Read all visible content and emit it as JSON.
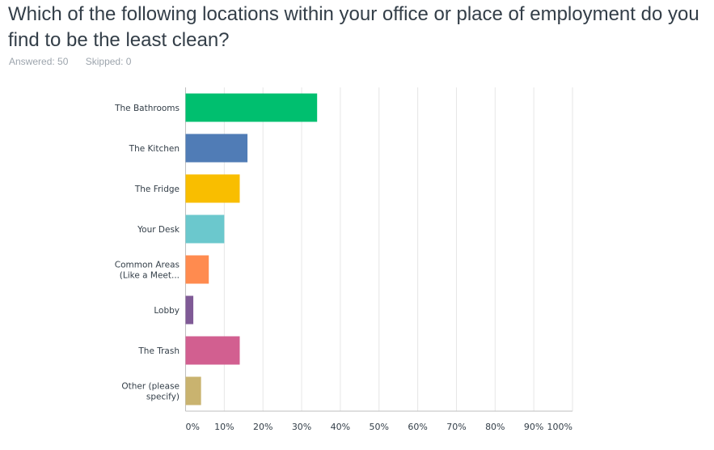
{
  "question": {
    "title": "Which of the following locations within your office or place of employment do you find to be the least clean?"
  },
  "stats": {
    "answered": "Answered: 50",
    "skipped": "Skipped: 0"
  },
  "chart_data": {
    "type": "bar",
    "orientation": "horizontal",
    "categories": [
      [
        "The Bathrooms"
      ],
      [
        "The Kitchen"
      ],
      [
        "The Fridge"
      ],
      [
        "Your Desk"
      ],
      [
        "Common Areas",
        "(Like a Meet..."
      ],
      [
        "Lobby"
      ],
      [
        "The Trash"
      ],
      [
        "Other (please",
        "specify)"
      ]
    ],
    "values": [
      34,
      16,
      14,
      10,
      6,
      2,
      14,
      4
    ],
    "colors": [
      "#00bf6f",
      "#507cb6",
      "#f9be00",
      "#6bc8cd",
      "#ff8b4f",
      "#7f5a96",
      "#d25f90",
      "#c9b36f"
    ],
    "xlim": [
      0,
      100
    ],
    "xticks": [
      "0%",
      "10%",
      "20%",
      "30%",
      "40%",
      "50%",
      "60%",
      "70%",
      "80%",
      "90%",
      "100%"
    ],
    "grid": true
  }
}
